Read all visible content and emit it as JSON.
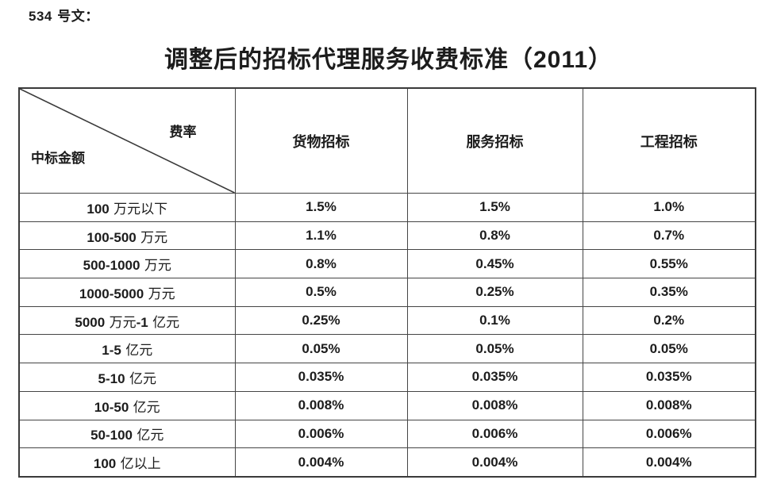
{
  "page": {
    "doc_label": "534 号文：",
    "title": "调整后的招标代理服务收费标准（2011）"
  },
  "table": {
    "corner": {
      "rate_label": "费率",
      "amount_label": "中标金额"
    },
    "columns": [
      "货物招标",
      "服务招标",
      "工程招标"
    ],
    "rows": [
      [
        "100 万元以下",
        "1.5%",
        "1.5%",
        "1.0%"
      ],
      [
        "100-500 万元",
        "1.1%",
        "0.8%",
        "0.7%"
      ],
      [
        "500-1000 万元",
        "0.8%",
        "0.45%",
        "0.55%"
      ],
      [
        "1000-5000 万元",
        "0.5%",
        "0.25%",
        "0.35%"
      ],
      [
        "5000 万元-1 亿元",
        "0.25%",
        "0.1%",
        "0.2%"
      ],
      [
        "1-5 亿元",
        "0.05%",
        "0.05%",
        "0.05%"
      ],
      [
        "5-10 亿元",
        "0.035%",
        "0.035%",
        "0.035%"
      ],
      [
        "10-50 亿元",
        "0.008%",
        "0.008%",
        "0.008%"
      ],
      [
        "50-100 亿元",
        "0.006%",
        "0.006%",
        "0.006%"
      ],
      [
        "100 亿以上",
        "0.004%",
        "0.004%",
        "0.004%"
      ]
    ]
  },
  "colors": {
    "text": "#1c1c1c",
    "border": "#454545",
    "outer_border": "#3a3a3a",
    "background": "#ffffff"
  }
}
